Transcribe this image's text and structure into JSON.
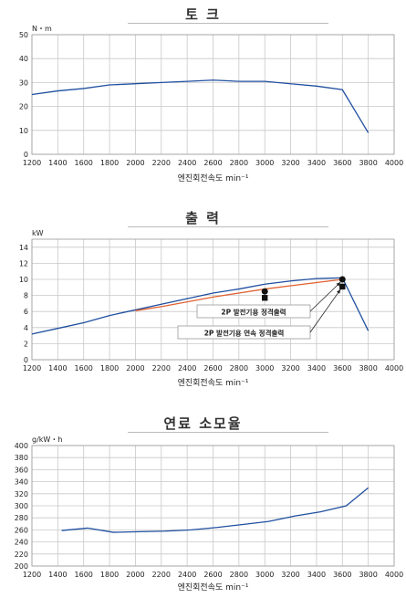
{
  "chart_data": [
    {
      "type": "line",
      "title": "토 크",
      "ylabel": "N・m",
      "xlabel": "엔진회전속도 min⁻¹",
      "xlim": [
        1200,
        4000
      ],
      "ylim": [
        0,
        50
      ],
      "x_ticks": [
        1200,
        1400,
        1600,
        1800,
        2000,
        2200,
        2400,
        2600,
        2800,
        3000,
        3200,
        3400,
        3600,
        3800,
        4000
      ],
      "y_ticks": [
        0,
        10,
        20,
        30,
        40,
        50
      ],
      "grid": true,
      "series": [
        {
          "color": "#1f4fa0",
          "x": [
            1200,
            1400,
            1600,
            1800,
            2000,
            2200,
            2400,
            2600,
            2800,
            3000,
            3200,
            3400,
            3600,
            3800
          ],
          "y": [
            25,
            26.5,
            27.5,
            29,
            29.5,
            30,
            30.5,
            31,
            30.5,
            30.5,
            29.5,
            28.5,
            27,
            9
          ]
        }
      ]
    },
    {
      "type": "line",
      "title": "출 력",
      "ylabel": "kW",
      "xlabel": "엔진회전속도 min⁻¹",
      "xlim": [
        1200,
        4000
      ],
      "ylim": [
        0,
        15
      ],
      "x_ticks": [
        1200,
        1400,
        1600,
        1800,
        2000,
        2200,
        2400,
        2600,
        2800,
        3000,
        3200,
        3400,
        3600,
        3800,
        4000
      ],
      "y_ticks": [
        0,
        2,
        4,
        6,
        8,
        10,
        12,
        14
      ],
      "grid": true,
      "series": [
        {
          "color": "#1f4fa0",
          "x": [
            1200,
            1400,
            1600,
            1800,
            2000,
            2200,
            2400,
            2600,
            2800,
            3000,
            3200,
            3400,
            3600,
            3800
          ],
          "y": [
            3.2,
            3.9,
            4.6,
            5.5,
            6.2,
            6.9,
            7.6,
            8.3,
            8.8,
            9.4,
            9.8,
            10.1,
            10.2,
            3.6
          ]
        },
        {
          "color": "#e06030",
          "x": [
            2000,
            2200,
            2400,
            2600,
            2800,
            3000,
            3200,
            3400,
            3600
          ],
          "y": [
            6.1,
            6.6,
            7.2,
            7.8,
            8.3,
            8.8,
            9.2,
            9.6,
            10.0
          ]
        }
      ],
      "markers": [
        {
          "x": 3000,
          "y": 8.5,
          "shape": "circle"
        },
        {
          "x": 3000,
          "y": 7.7,
          "shape": "square"
        },
        {
          "x": 3600,
          "y": 10.0,
          "shape": "circle"
        },
        {
          "x": 3600,
          "y": 9.1,
          "shape": "square"
        }
      ],
      "annotations": [
        {
          "text": "2P 발전기용 정격출력",
          "target_x": 3600,
          "target_y": 10.0
        },
        {
          "text": "2P 발전기용 연속 정격출력",
          "target_x": 3600,
          "target_y": 9.1
        }
      ]
    },
    {
      "type": "line",
      "title": "연료 소모율",
      "ylabel": "g/kW・h",
      "xlabel": "엔진회전속도 min⁻¹",
      "xlim": [
        1200,
        4000
      ],
      "ylim": [
        200,
        400
      ],
      "x_ticks": [
        1200,
        1400,
        1600,
        1800,
        2000,
        2200,
        2400,
        2600,
        2800,
        3000,
        3200,
        3400,
        3600,
        3800,
        4000
      ],
      "y_ticks": [
        200,
        220,
        240,
        260,
        280,
        300,
        320,
        340,
        360,
        380,
        400
      ],
      "grid": true,
      "series": [
        {
          "color": "#1f4fa0",
          "x": [
            1430,
            1630,
            1830,
            2030,
            2230,
            2430,
            2630,
            2830,
            3030,
            3230,
            3430,
            3630,
            3800
          ],
          "y": [
            259,
            263,
            256,
            257,
            258,
            260,
            264,
            269,
            274,
            283,
            290,
            300,
            330
          ]
        }
      ]
    }
  ]
}
